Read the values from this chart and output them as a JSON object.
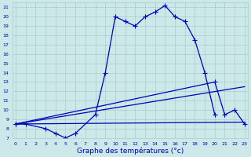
{
  "xlabel": "Graphe des températures (°c)",
  "bg_color": "#cce8e8",
  "grid_color_major": "#aacccc",
  "grid_color_minor": "#bbdddd",
  "line_color": "#0000bb",
  "ylim": [
    7,
    21.5
  ],
  "xlim": [
    -0.3,
    23.3
  ],
  "curve1_x": [
    0,
    1,
    3,
    4,
    5,
    6,
    8,
    9,
    10,
    11,
    12,
    13,
    14,
    15,
    16,
    17,
    18,
    19,
    20
  ],
  "curve1_y": [
    8.5,
    8.5,
    8.0,
    7.5,
    7.0,
    7.5,
    9.5,
    14.0,
    20.0,
    19.5,
    19.0,
    20.0,
    20.5,
    21.2,
    20.0,
    19.5,
    17.5,
    14.0,
    9.5
  ],
  "curve2_x": [
    0,
    20,
    21,
    22,
    23
  ],
  "curve2_y": [
    8.5,
    13.0,
    9.5,
    10.0,
    8.5
  ],
  "curve3_x": [
    0,
    23
  ],
  "curve3_y": [
    8.5,
    12.5
  ],
  "curve4_x": [
    0,
    23
  ],
  "curve4_y": [
    8.5,
    8.7
  ],
  "yticks": [
    7,
    8,
    9,
    10,
    11,
    12,
    13,
    14,
    15,
    16,
    17,
    18,
    19,
    20,
    21
  ],
  "xticks": [
    0,
    1,
    2,
    3,
    4,
    5,
    6,
    7,
    8,
    9,
    10,
    11,
    12,
    13,
    14,
    15,
    16,
    17,
    18,
    19,
    20,
    21,
    22,
    23
  ]
}
